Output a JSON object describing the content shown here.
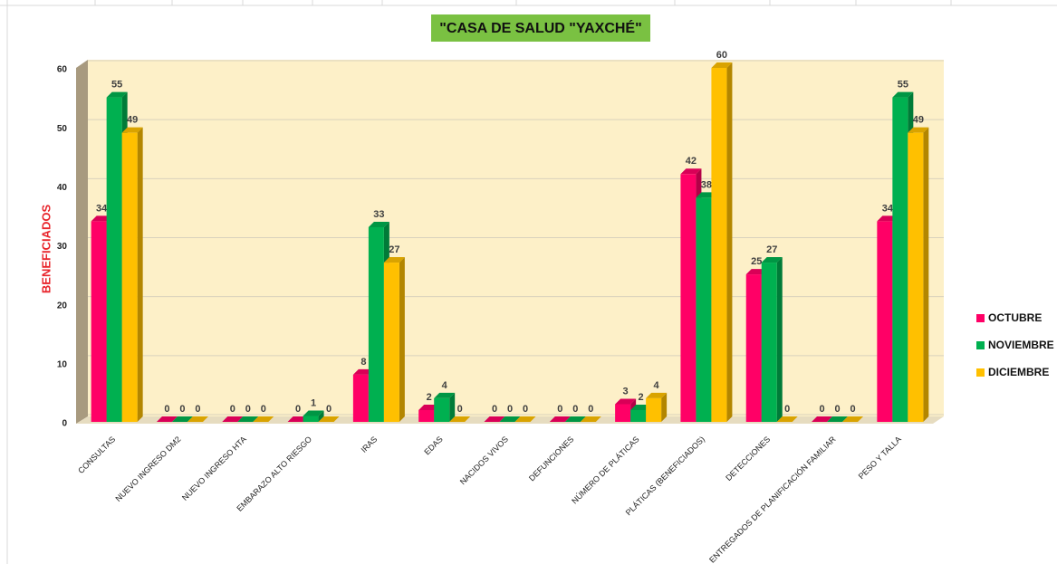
{
  "chart_data": {
    "type": "bar",
    "title": "\"CASA DE SALUD \"YAXCHÉ\"",
    "y_label": "BENEFICIADOS",
    "categories": [
      "CONSULTAS",
      "NUEVO INGRESO DM2",
      "NUEVO INGRESO HTA",
      "EMBARAZO ALTO RIESGO",
      "IRAS",
      "EDAS",
      "NACIDOS VIVOS",
      "DEFUNCIONES",
      "NÚMERO DE PLÁTICAS",
      "PLÁTICAS (BENEFICIADOS)",
      "DETECCIONES",
      "ENTREGADOS DE PLANIFICACIÓN FAMILIAR",
      "PESO Y TALLA"
    ],
    "series": [
      {
        "name": "OCTUBRE",
        "color": "#ff0066",
        "values": [
          34,
          0,
          0,
          0,
          8,
          2,
          0,
          0,
          3,
          42,
          25,
          0,
          34
        ]
      },
      {
        "name": "NOVIEMBRE",
        "color": "#00b050",
        "values": [
          55,
          0,
          0,
          1,
          33,
          4,
          0,
          0,
          2,
          38,
          27,
          0,
          55
        ]
      },
      {
        "name": "DICIEMBRE",
        "color": "#ffc000",
        "values": [
          49,
          0,
          0,
          0,
          27,
          0,
          0,
          0,
          4,
          60,
          0,
          0,
          49
        ]
      }
    ],
    "ylim": [
      0,
      60
    ],
    "yticks": [
      0,
      10,
      20,
      30,
      40,
      50,
      60
    ],
    "grid": true,
    "legend": "right"
  }
}
